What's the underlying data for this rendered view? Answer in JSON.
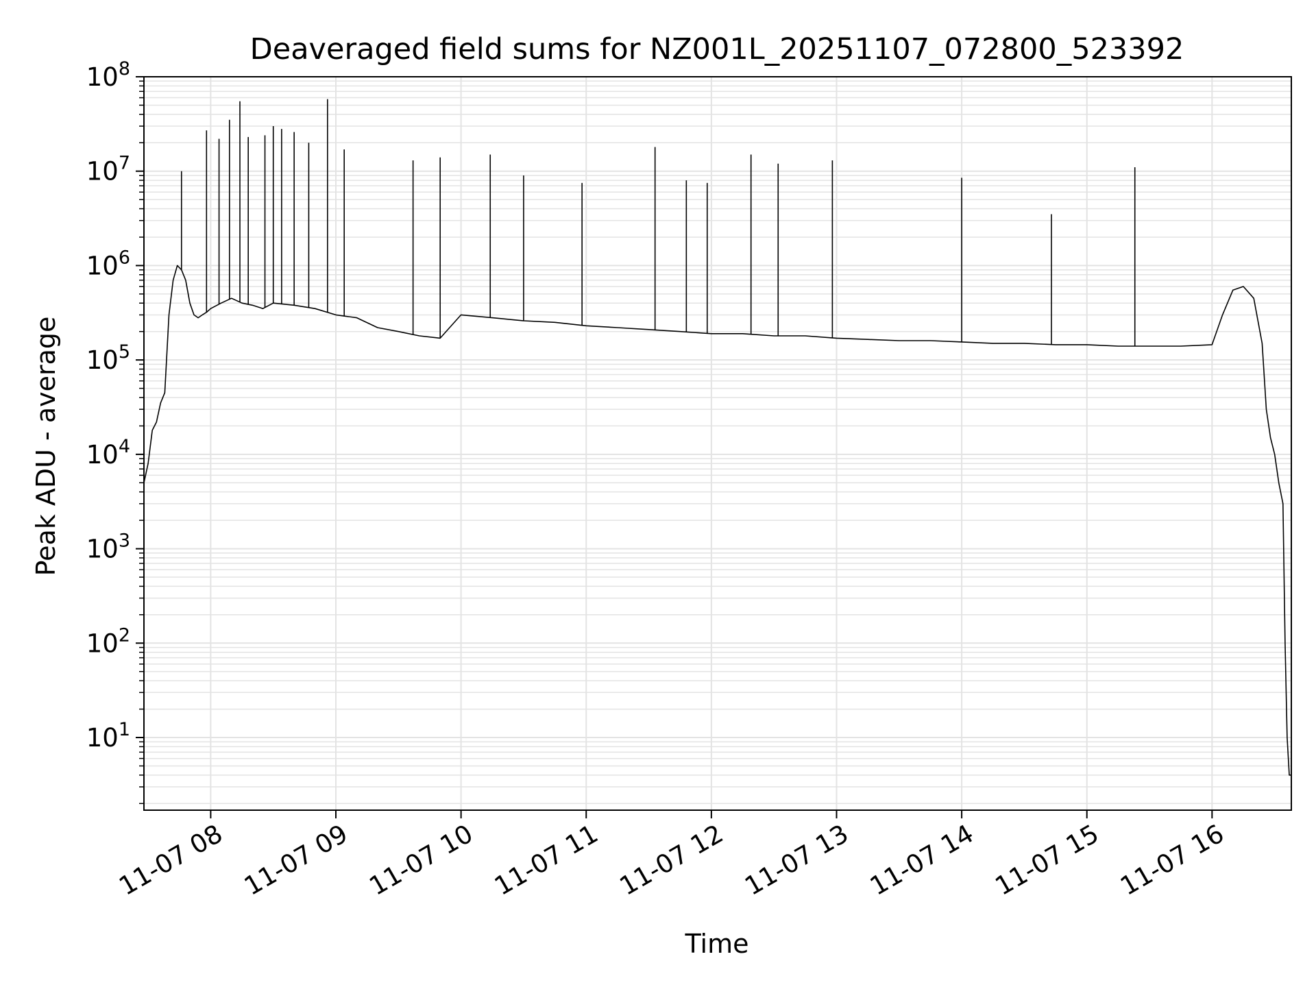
{
  "chart_data": {
    "type": "line",
    "title": "Deaveraged field sums for NZ001L_20251107_072800_523392",
    "xlabel": "Time",
    "ylabel": "Peak ADU - average",
    "yscale": "log",
    "ylim": [
      1.7,
      100000000
    ],
    "xlim": [
      "2025-11-07 07:28",
      "2025-11-07 16:38"
    ],
    "grid": true,
    "line_color": "#000000",
    "x_ticks": [
      {
        "value": "2025-11-07 08:00",
        "label": "11-07 08"
      },
      {
        "value": "2025-11-07 09:00",
        "label": "11-07 09"
      },
      {
        "value": "2025-11-07 10:00",
        "label": "11-07 10"
      },
      {
        "value": "2025-11-07 11:00",
        "label": "11-07 11"
      },
      {
        "value": "2025-11-07 12:00",
        "label": "11-07 12"
      },
      {
        "value": "2025-11-07 13:00",
        "label": "11-07 13"
      },
      {
        "value": "2025-11-07 14:00",
        "label": "11-07 14"
      },
      {
        "value": "2025-11-07 15:00",
        "label": "11-07 15"
      },
      {
        "value": "2025-11-07 16:00",
        "label": "11-07 16"
      }
    ],
    "y_ticks": [
      {
        "value": 10,
        "base": "10",
        "exp": "1"
      },
      {
        "value": 100,
        "base": "10",
        "exp": "2"
      },
      {
        "value": 1000,
        "base": "10",
        "exp": "3"
      },
      {
        "value": 10000,
        "base": "10",
        "exp": "4"
      },
      {
        "value": 100000,
        "base": "10",
        "exp": "5"
      },
      {
        "value": 1000000,
        "base": "10",
        "exp": "6"
      },
      {
        "value": 10000000,
        "base": "10",
        "exp": "7"
      },
      {
        "value": 100000000,
        "base": "10",
        "exp": "8"
      }
    ],
    "series": [
      {
        "x": [
          "2025-11-07 07:28",
          "2025-11-07 07:30",
          "2025-11-07 07:32",
          "2025-11-07 07:34",
          "2025-11-07 07:36",
          "2025-11-07 07:38",
          "2025-11-07 07:40",
          "2025-11-07 07:42",
          "2025-11-07 07:44",
          "2025-11-07 07:46",
          "2025-11-07 07:48",
          "2025-11-07 07:50",
          "2025-11-07 07:52",
          "2025-11-07 07:54",
          "2025-11-07 07:56",
          "2025-11-07 07:58",
          "2025-11-07 08:00",
          "2025-11-07 08:05",
          "2025-11-07 08:10",
          "2025-11-07 08:15",
          "2025-11-07 08:20",
          "2025-11-07 08:25",
          "2025-11-07 08:30",
          "2025-11-07 08:40",
          "2025-11-07 08:50",
          "2025-11-07 09:00",
          "2025-11-07 09:10",
          "2025-11-07 09:20",
          "2025-11-07 09:30",
          "2025-11-07 09:40",
          "2025-11-07 09:50",
          "2025-11-07 10:00",
          "2025-11-07 10:15",
          "2025-11-07 10:30",
          "2025-11-07 10:45",
          "2025-11-07 11:00",
          "2025-11-07 11:15",
          "2025-11-07 11:30",
          "2025-11-07 11:45",
          "2025-11-07 12:00",
          "2025-11-07 12:15",
          "2025-11-07 12:30",
          "2025-11-07 12:45",
          "2025-11-07 13:00",
          "2025-11-07 13:15",
          "2025-11-07 13:30",
          "2025-11-07 13:45",
          "2025-11-07 14:00",
          "2025-11-07 14:15",
          "2025-11-07 14:30",
          "2025-11-07 14:45",
          "2025-11-07 15:00",
          "2025-11-07 15:15",
          "2025-11-07 15:30",
          "2025-11-07 15:45",
          "2025-11-07 16:00",
          "2025-11-07 16:05",
          "2025-11-07 16:10",
          "2025-11-07 16:15",
          "2025-11-07 16:20",
          "2025-11-07 16:24",
          "2025-11-07 16:26",
          "2025-11-07 16:28",
          "2025-11-07 16:30",
          "2025-11-07 16:32",
          "2025-11-07 16:34",
          "2025-11-07 16:35",
          "2025-11-07 16:36",
          "2025-11-07 16:37",
          "2025-11-07 16:38"
        ],
        "y": [
          5000,
          8000,
          18000,
          22000,
          35000,
          45000,
          300000,
          700000,
          1000000,
          900000,
          700000,
          400000,
          300000,
          280000,
          300000,
          320000,
          350000,
          400000,
          450000,
          400000,
          380000,
          350000,
          400000,
          380000,
          350000,
          300000,
          280000,
          220000,
          200000,
          180000,
          170000,
          300000,
          280000,
          260000,
          250000,
          230000,
          220000,
          210000,
          200000,
          190000,
          190000,
          180000,
          180000,
          170000,
          165000,
          160000,
          160000,
          155000,
          150000,
          150000,
          145000,
          145000,
          140000,
          140000,
          140000,
          145000,
          300000,
          550000,
          600000,
          450000,
          150000,
          30000,
          15000,
          10000,
          5000,
          3000,
          100,
          10,
          4,
          4
        ]
      }
    ],
    "spikes": [
      {
        "x": "2025-11-07 07:46",
        "y": 10000000
      },
      {
        "x": "2025-11-07 07:58",
        "y": 27000000
      },
      {
        "x": "2025-11-07 08:04",
        "y": 22000000
      },
      {
        "x": "2025-11-07 08:09",
        "y": 35000000
      },
      {
        "x": "2025-11-07 08:14",
        "y": 55000000
      },
      {
        "x": "2025-11-07 08:18",
        "y": 23000000
      },
      {
        "x": "2025-11-07 08:26",
        "y": 24000000
      },
      {
        "x": "2025-11-07 08:30",
        "y": 30000000
      },
      {
        "x": "2025-11-07 08:34",
        "y": 28000000
      },
      {
        "x": "2025-11-07 08:40",
        "y": 26000000
      },
      {
        "x": "2025-11-07 08:47",
        "y": 20000000
      },
      {
        "x": "2025-11-07 08:56",
        "y": 58000000
      },
      {
        "x": "2025-11-07 09:04",
        "y": 17000000
      },
      {
        "x": "2025-11-07 09:37",
        "y": 13000000
      },
      {
        "x": "2025-11-07 09:50",
        "y": 14000000
      },
      {
        "x": "2025-11-07 10:14",
        "y": 15000000
      },
      {
        "x": "2025-11-07 10:30",
        "y": 9000000
      },
      {
        "x": "2025-11-07 10:58",
        "y": 7500000
      },
      {
        "x": "2025-11-07 11:33",
        "y": 18000000
      },
      {
        "x": "2025-11-07 11:48",
        "y": 8000000
      },
      {
        "x": "2025-11-07 11:58",
        "y": 7500000
      },
      {
        "x": "2025-11-07 12:19",
        "y": 15000000
      },
      {
        "x": "2025-11-07 12:32",
        "y": 12000000
      },
      {
        "x": "2025-11-07 12:58",
        "y": 13000000
      },
      {
        "x": "2025-11-07 14:00",
        "y": 8500000
      },
      {
        "x": "2025-11-07 14:43",
        "y": 3500000
      },
      {
        "x": "2025-11-07 15:23",
        "y": 11000000
      }
    ]
  }
}
